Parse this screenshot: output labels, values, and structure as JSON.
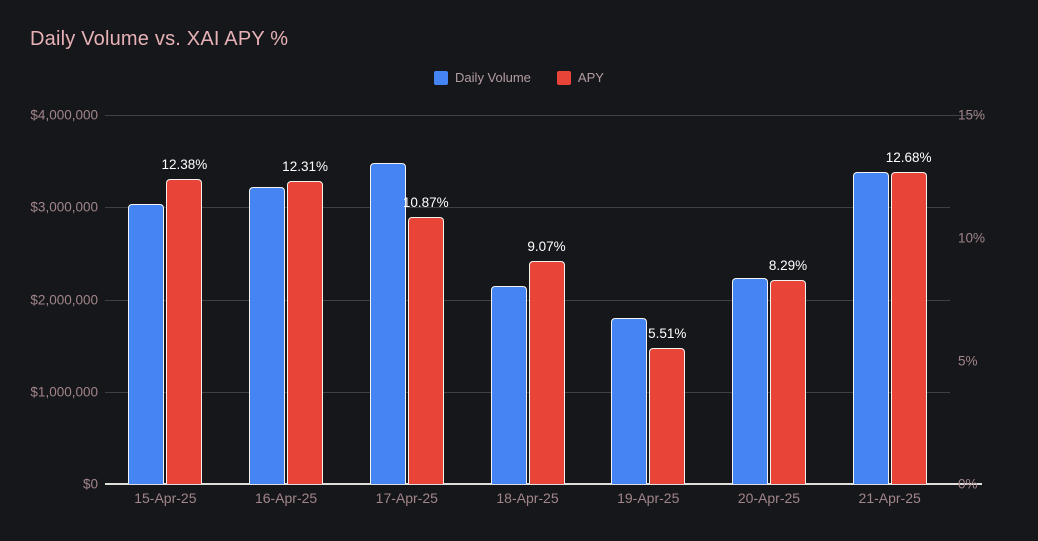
{
  "chart_data": {
    "type": "bar",
    "title": "Daily Volume vs. XAI APY %",
    "legend_position": "top",
    "grid": true,
    "categories": [
      "15-Apr-25",
      "16-Apr-25",
      "17-Apr-25",
      "18-Apr-25",
      "19-Apr-25",
      "20-Apr-25",
      "21-Apr-25"
    ],
    "series": [
      {
        "name": "Daily Volume",
        "axis": "left",
        "color": "#4485f3",
        "values": [
          3040000,
          3220000,
          3480000,
          2150000,
          1800000,
          2230000,
          3380000
        ]
      },
      {
        "name": "APY",
        "axis": "right",
        "color": "#e94438",
        "values": [
          12.38,
          12.31,
          10.87,
          9.07,
          5.51,
          8.29,
          12.68
        ],
        "labels": [
          "12.38%",
          "12.31%",
          "10.87%",
          "9.07%",
          "5.51%",
          "8.29%",
          "12.68%"
        ]
      }
    ],
    "left_axis": {
      "ticks": [
        "$4,000,000",
        "$3,000,000",
        "$2,000,000",
        "$1,000,000",
        "$0"
      ],
      "min": 0,
      "max": 4000000
    },
    "right_axis": {
      "ticks": [
        "15%",
        "10%",
        "5%",
        "0%"
      ],
      "min": 0,
      "max": 15
    }
  },
  "colors": {
    "background": "#15171b",
    "title": "#e7b1b6",
    "axis_text": "#a18589",
    "legend_text": "#b39da1",
    "gridline": "#3d4045",
    "axis_line": "#e0dedc",
    "bar_border": "#f4f2ef",
    "data_label": "#ffffff"
  }
}
